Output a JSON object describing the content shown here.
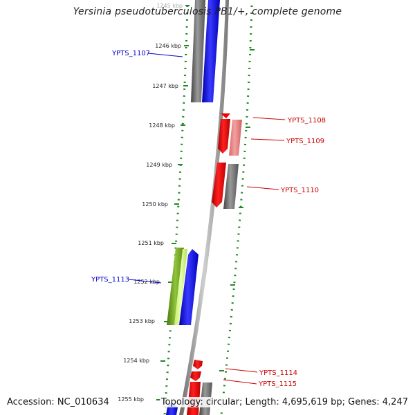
{
  "title": "Yersinia pseudotuberculosis PB1/+, complete genome",
  "footer": {
    "accession": "Accession: NC_010634",
    "summary": "Topology: circular; Length: 4,695,619 bp; Genes: 4,247"
  },
  "colors": {
    "forward_label": "#0000cc",
    "reverse_label": "#cc0000",
    "gridline": "#228822",
    "backbone": "#999999"
  },
  "kbp_ticks": [
    {
      "kbp": 1245,
      "label": "1245 kbp",
      "faded": true
    },
    {
      "kbp": 1246,
      "label": "1246 kbp"
    },
    {
      "kbp": 1247,
      "label": "1247 kbp"
    },
    {
      "kbp": 1248,
      "label": "1248 kbp"
    },
    {
      "kbp": 1249,
      "label": "1249 kbp"
    },
    {
      "kbp": 1250,
      "label": "1250 kbp"
    },
    {
      "kbp": 1251,
      "label": "1251 kbp"
    },
    {
      "kbp": 1252,
      "label": "1252 kbp"
    },
    {
      "kbp": 1253,
      "label": "1253 kbp"
    },
    {
      "kbp": 1254,
      "label": "1254 kbp"
    },
    {
      "kbp": 1255,
      "label": "1255 kbp"
    }
  ],
  "gene_labels": [
    {
      "id": "YPTS_1107",
      "strand": "forward"
    },
    {
      "id": "YPTS_1108",
      "strand": "reverse"
    },
    {
      "id": "YPTS_1109",
      "strand": "reverse"
    },
    {
      "id": "YPTS_1110",
      "strand": "reverse"
    },
    {
      "id": "YPTS_1113",
      "strand": "forward"
    },
    {
      "id": "YPTS_1114",
      "strand": "reverse"
    },
    {
      "id": "YPTS_1115",
      "strand": "reverse"
    }
  ]
}
